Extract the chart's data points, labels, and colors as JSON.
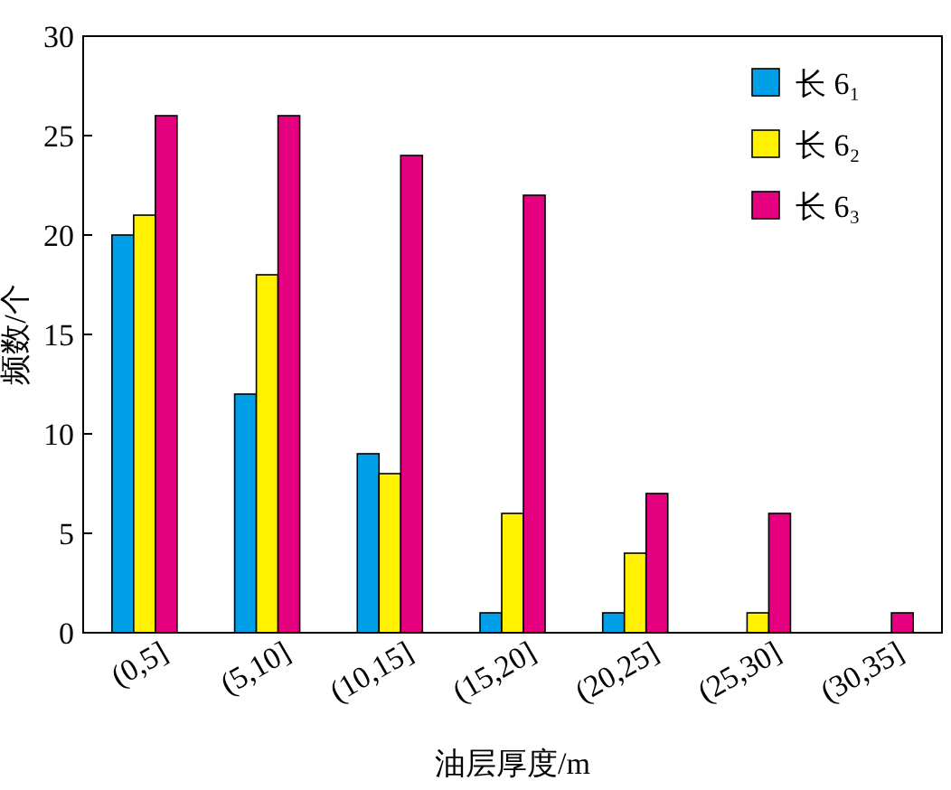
{
  "chart_data": {
    "type": "bar",
    "xlabel": "油层厚度/m",
    "ylabel": "频数/个",
    "categories": [
      "(0,5]",
      "(5,10]",
      "(10,15]",
      "(15,20]",
      "(20,25]",
      "(25,30]",
      "(30,35]"
    ],
    "series": [
      {
        "name": "长 6₁",
        "color": "#00a0e9",
        "values": [
          20,
          12,
          9,
          1,
          1,
          null,
          null
        ]
      },
      {
        "name": "长 6₂",
        "color": "#fff100",
        "values": [
          21,
          18,
          8,
          6,
          4,
          1,
          null
        ]
      },
      {
        "name": "长 6₃",
        "color": "#e4007f",
        "values": [
          26,
          26,
          24,
          22,
          7,
          6,
          1
        ]
      }
    ],
    "ylim": [
      0,
      30
    ],
    "yticks": [
      0,
      5,
      10,
      15,
      20,
      25,
      30
    ],
    "legend": "top right"
  }
}
